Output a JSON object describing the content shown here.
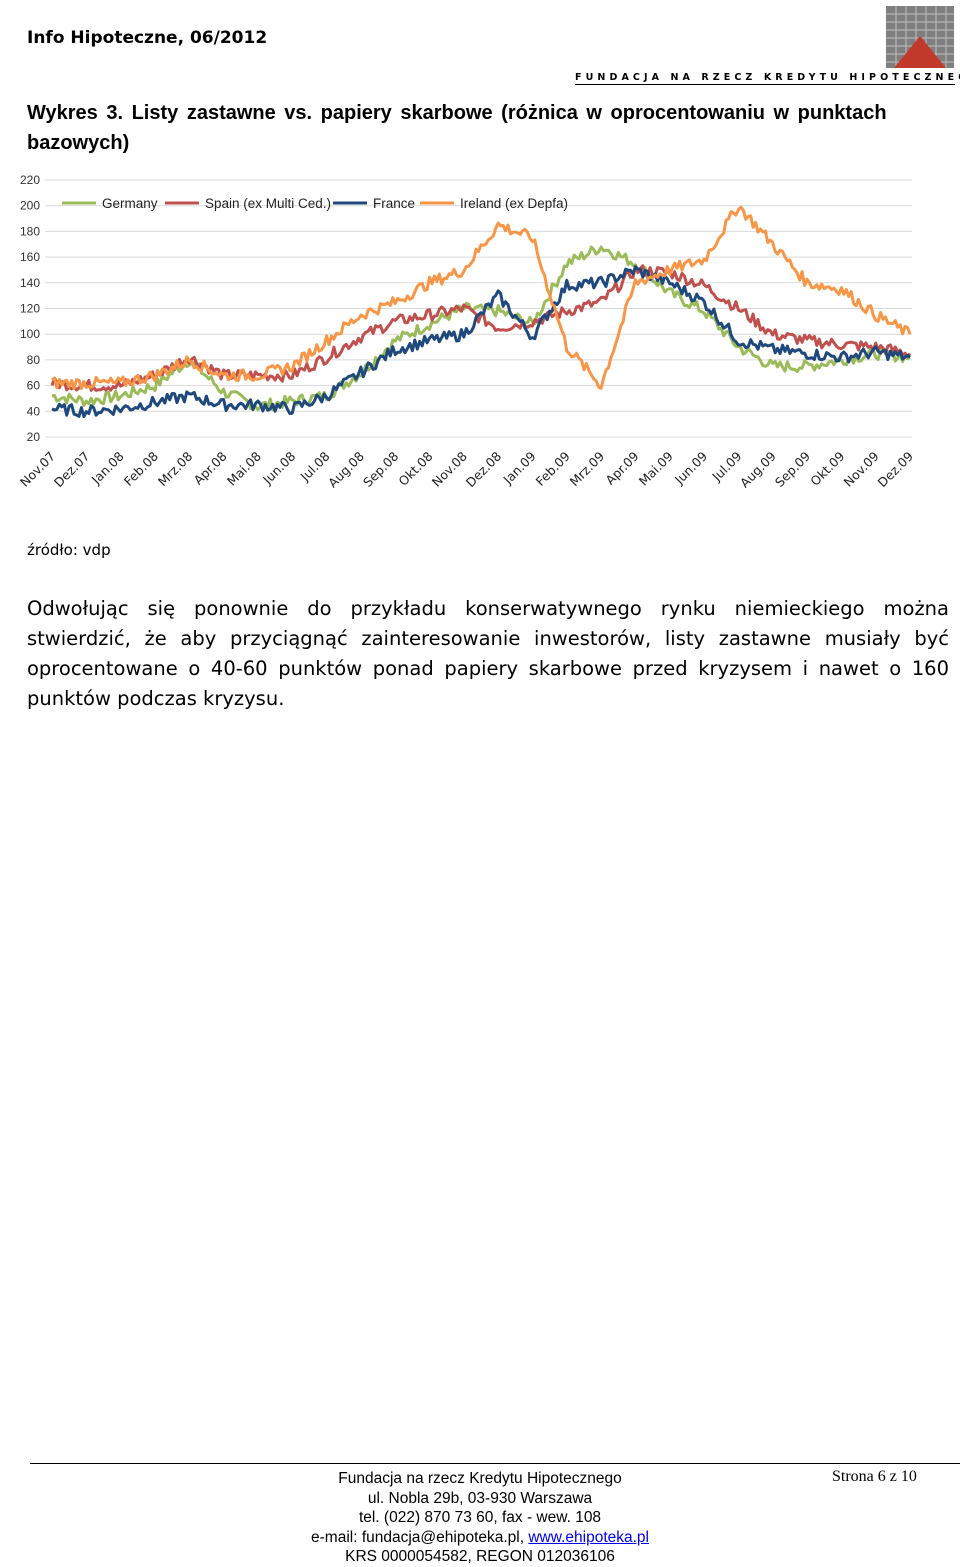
{
  "header": {
    "title": "Info Hipoteczne, 06/2012",
    "org_logo_text": "FUNDACJA NA RZECZ KREDYTU HIPOTECZNEGO"
  },
  "figure": {
    "caption": "Wykres 3. Listy zastawne vs. papiery skarbowe (różnica w oprocentowaniu w punktach bazowych)",
    "source": "źródło: vdp"
  },
  "chart_data": {
    "type": "line",
    "title": "",
    "xlabel": "",
    "ylabel": "",
    "ylim": [
      20,
      220
    ],
    "yticks": [
      20,
      40,
      60,
      80,
      100,
      120,
      140,
      160,
      180,
      200,
      220
    ],
    "grid": true,
    "legend_position": "top",
    "categories": [
      "Nov.07",
      "Dez.07",
      "Jan.08",
      "Feb.08",
      "Mrz.08",
      "Apr.08",
      "Mai.08",
      "Jun.08",
      "Jul.08",
      "Aug.08",
      "Sep.08",
      "Okt.08",
      "Nov.08",
      "Dez.08",
      "Jan.09",
      "Feb.09",
      "Mrz.09",
      "Apr.09",
      "Mai.09",
      "Jun.09",
      "Jul.09",
      "Aug.09",
      "Sep.09",
      "Okt.09",
      "Nov.09",
      "Dez.09"
    ],
    "series": [
      {
        "name": "Germany",
        "color": "#9BBB59",
        "values": [
          52,
          48,
          52,
          60,
          80,
          55,
          44,
          48,
          52,
          70,
          95,
          108,
          120,
          118,
          108,
          155,
          168,
          155,
          132,
          118,
          90,
          75,
          75,
          80,
          85,
          82
        ]
      },
      {
        "name": "Spain (ex Multi Ced.)",
        "color": "#C0504D",
        "values": [
          62,
          60,
          60,
          68,
          82,
          68,
          68,
          68,
          82,
          98,
          110,
          115,
          120,
          105,
          110,
          118,
          125,
          150,
          148,
          138,
          120,
          100,
          95,
          92,
          90,
          85
        ]
      },
      {
        "name": "France",
        "color": "#1F497D",
        "values": [
          42,
          40,
          42,
          47,
          52,
          45,
          45,
          42,
          52,
          70,
          88,
          95,
          100,
          130,
          98,
          138,
          140,
          150,
          140,
          125,
          95,
          88,
          85,
          82,
          86,
          82
        ]
      },
      {
        "name": "Ireland (ex Depfa)",
        "color": "#F79646",
        "values": [
          62,
          62,
          62,
          68,
          80,
          68,
          68,
          75,
          95,
          115,
          125,
          140,
          150,
          185,
          175,
          90,
          60,
          140,
          150,
          158,
          200,
          170,
          140,
          135,
          115,
          100
        ]
      }
    ]
  },
  "body": {
    "paragraph": "Odwołując się ponownie do przykładu konserwatywnego rynku niemieckiego można stwierdzić, że aby przyciągnąć zainteresowanie inwestorów, listy zastawne musiały być oprocentowane o 40-60 punktów ponad papiery skarbowe przed kryzysem i nawet o 160 punktów podczas kryzysu."
  },
  "footer": {
    "line1": "Fundacja na rzecz Kredytu Hipotecznego",
    "line2": "ul. Nobla 29b, 03-930 Warszawa",
    "line3": "tel. (022) 870 73 60, fax - wew. 108",
    "email_prefix": "e-mail: fundacja@ehipoteka.pl, ",
    "website": "www.ehipoteka.pl",
    "line5": "KRS 0000054582, REGON 012036106",
    "page": "Strona 6 z 10"
  }
}
